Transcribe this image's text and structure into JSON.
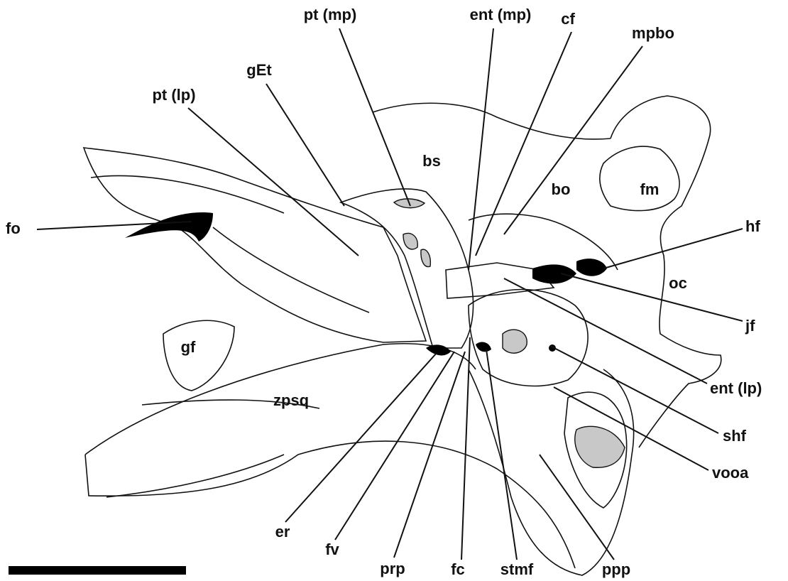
{
  "labels": [
    "pt (mp)",
    "ent (mp)",
    "cf",
    "mpbo",
    "gEt",
    "pt (lp)",
    "bs",
    "bo",
    "fm",
    "fo",
    "hf",
    "oc",
    "jf",
    "gf",
    "ent (lp)",
    "zpsq",
    "shf",
    "vooa",
    "er",
    "fv",
    "prp",
    "fc",
    "stmf",
    "ppp"
  ]
}
